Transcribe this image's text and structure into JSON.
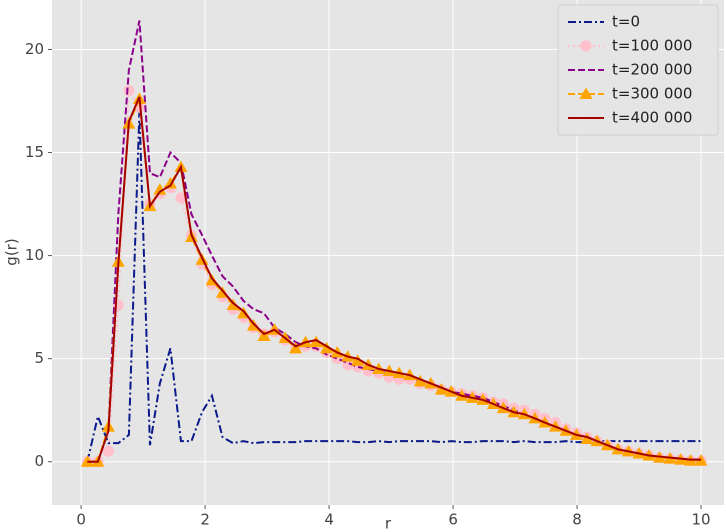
{
  "chart_data": {
    "type": "line",
    "xlabel": "r",
    "ylabel": "g(r)",
    "xlim": [
      -0.47,
      10.37
    ],
    "ylim": [
      -2.1,
      22.4
    ],
    "xticks": [
      0,
      2,
      4,
      6,
      8,
      10
    ],
    "yticks": [
      0,
      5,
      10,
      15,
      20
    ],
    "grid": true,
    "legend": "upper right",
    "x": [
      0.1,
      0.27,
      0.44,
      0.6,
      0.77,
      0.94,
      1.11,
      1.27,
      1.44,
      1.61,
      1.78,
      1.95,
      2.11,
      2.28,
      2.45,
      2.62,
      2.78,
      2.95,
      3.12,
      3.29,
      3.46,
      3.62,
      3.79,
      3.96,
      4.13,
      4.3,
      4.46,
      4.63,
      4.8,
      4.97,
      5.13,
      5.3,
      5.47,
      5.64,
      5.81,
      5.97,
      6.14,
      6.31,
      6.48,
      6.65,
      6.81,
      6.98,
      7.15,
      7.32,
      7.48,
      7.65,
      7.82,
      7.99,
      8.16,
      8.32,
      8.49,
      8.66,
      8.83,
      9.0,
      9.16,
      9.33,
      9.5,
      9.67,
      9.83,
      10.0
    ],
    "series": [
      {
        "name": "t=0",
        "color": "#0a1a8a",
        "dash": "dashdot",
        "marker": "none",
        "values": [
          0,
          2.2,
          0.9,
          0.9,
          1.3,
          17,
          0.8,
          3.8,
          5.5,
          1.0,
          1.0,
          2.4,
          3.2,
          1.2,
          0.9,
          1.0,
          0.9,
          0.95,
          0.95,
          0.95,
          0.95,
          1.0,
          1.0,
          1.0,
          1.0,
          1.0,
          0.95,
          0.95,
          1.0,
          0.95,
          1.0,
          1.0,
          1.0,
          1.0,
          0.95,
          1.0,
          0.95,
          0.95,
          1.0,
          1.0,
          1.0,
          0.95,
          1.0,
          0.95,
          0.95,
          0.95,
          1.0,
          0.95,
          0.95,
          1.0,
          1.0,
          1.0,
          1.0,
          1.0,
          1.0,
          1.0,
          1.0,
          1.0,
          1.0,
          1.0
        ]
      },
      {
        "name": "t=100 000",
        "color": "#ffc0cb",
        "dash": "dotted",
        "marker": "circle",
        "values": [
          0,
          0,
          0.5,
          7.6,
          18,
          17.2,
          12.5,
          13,
          13.3,
          12.8,
          11,
          9.6,
          8.6,
          8,
          7.4,
          7.0,
          6.5,
          6.2,
          6.3,
          5.9,
          5.5,
          5.6,
          5.6,
          5.3,
          5.0,
          4.7,
          4.6,
          4.4,
          4.3,
          4.1,
          4.0,
          4.0,
          3.8,
          3.7,
          3.5,
          3.4,
          3.3,
          3.2,
          3.1,
          2.9,
          2.8,
          2.6,
          2.5,
          2.3,
          2.1,
          1.9,
          1.6,
          1.4,
          1.2,
          1.0,
          0.8,
          0.6,
          0.5,
          0.4,
          0.3,
          0.2,
          0.15,
          0.1,
          0.05,
          0.05
        ]
      },
      {
        "name": "t=200 000",
        "color": "#8b008b",
        "dash": "dashed",
        "marker": "none",
        "values": [
          0,
          0,
          1.5,
          12,
          19,
          21.4,
          14,
          13.8,
          15,
          14.5,
          12,
          11,
          10,
          9,
          8.5,
          7.8,
          7.4,
          7.2,
          6.5,
          6.2,
          5.8,
          5.6,
          5.5,
          5.2,
          5.0,
          4.8,
          4.6,
          4.5,
          4.4,
          4.3,
          4.3,
          4.1,
          3.9,
          3.8,
          3.6,
          3.4,
          3.3,
          3.2,
          3.1,
          2.9,
          2.7,
          2.5,
          2.3,
          2.1,
          1.9,
          1.7,
          1.5,
          1.3,
          1.2,
          1.0,
          0.8,
          0.6,
          0.5,
          0.4,
          0.3,
          0.2,
          0.2,
          0.15,
          0.1,
          0.1
        ]
      },
      {
        "name": "t=300 000",
        "color": "#ffa500",
        "dash": "dashed",
        "marker": "triangle",
        "values": [
          0,
          0,
          1.7,
          9.7,
          16.4,
          17.6,
          12.4,
          13.2,
          13.5,
          14.3,
          10.9,
          9.8,
          8.8,
          8.2,
          7.6,
          7.2,
          6.6,
          6.1,
          6.4,
          6.0,
          5.5,
          5.8,
          5.8,
          5.5,
          5.3,
          5.1,
          4.9,
          4.7,
          4.5,
          4.4,
          4.3,
          4.2,
          3.9,
          3.8,
          3.5,
          3.4,
          3.2,
          3.1,
          3.0,
          2.8,
          2.6,
          2.4,
          2.3,
          2.1,
          1.9,
          1.7,
          1.5,
          1.3,
          1.1,
          1.0,
          0.8,
          0.6,
          0.5,
          0.4,
          0.3,
          0.2,
          0.15,
          0.1,
          0.05,
          0.05
        ]
      },
      {
        "name": "t=400 000",
        "color": "#a50000",
        "dash": "solid",
        "marker": "none",
        "values": [
          0,
          0,
          1.5,
          9.6,
          16.5,
          17.7,
          12.4,
          13.1,
          13.4,
          14.3,
          11.0,
          9.9,
          8.9,
          8.3,
          7.7,
          7.3,
          6.7,
          6.2,
          6.4,
          6.0,
          5.6,
          5.8,
          5.9,
          5.6,
          5.3,
          5.1,
          5.0,
          4.7,
          4.5,
          4.4,
          4.3,
          4.2,
          4.0,
          3.8,
          3.6,
          3.4,
          3.2,
          3.1,
          3.0,
          2.8,
          2.6,
          2.4,
          2.3,
          2.1,
          1.9,
          1.7,
          1.5,
          1.3,
          1.2,
          1.0,
          0.8,
          0.6,
          0.5,
          0.4,
          0.3,
          0.25,
          0.2,
          0.15,
          0.1,
          0.1
        ]
      }
    ]
  }
}
